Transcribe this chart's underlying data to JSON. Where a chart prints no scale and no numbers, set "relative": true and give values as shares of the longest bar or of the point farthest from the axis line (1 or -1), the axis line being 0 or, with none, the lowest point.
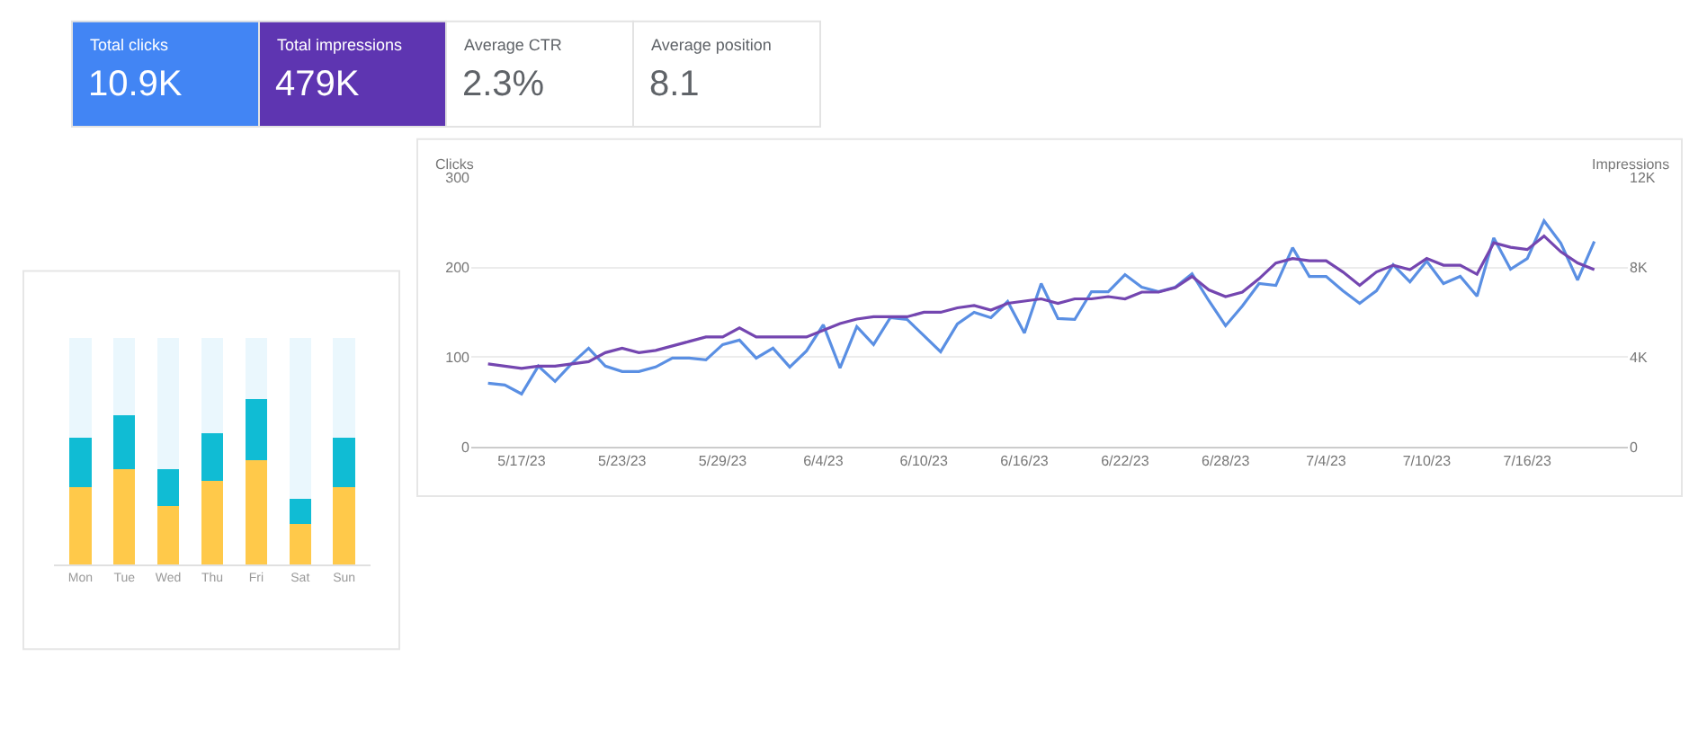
{
  "chart_data": [
    {
      "type": "other",
      "annotations": [
        "Total clicks",
        "10.9K",
        "Total impressions",
        "479K",
        "Average CTR",
        "2.3%",
        "Average position",
        "8.1"
      ]
    },
    {
      "type": "line",
      "ylabel": "Clicks",
      "y2label": "Impressions",
      "grid": "y",
      "legend": false,
      "marker": "none",
      "line_style": "solid",
      "x": [
        "--05-15",
        "--05-16",
        "--05-17",
        "--05-18",
        "--05-19",
        "--05-20",
        "--05-21",
        "--05-22",
        "--05-23",
        "--05-24",
        "--05-25",
        "--05-26",
        "--05-27",
        "--05-28",
        "--05-29",
        "--05-30",
        "--05-31",
        "--06-01",
        "--06-02",
        "--06-03",
        "--06-04",
        "--06-05",
        "--06-06",
        "--06-07",
        "--06-08",
        "--06-09",
        "--06-10",
        "--06-11",
        "--06-12",
        "--06-13",
        "--06-14",
        "--06-15",
        "--06-16",
        "--06-17",
        "--06-18",
        "--06-19",
        "--06-20",
        "--06-21",
        "--06-22",
        "--06-23",
        "--06-24",
        "--06-25",
        "--06-26",
        "--06-27",
        "--06-28",
        "--06-29",
        "--06-30",
        "--07-01",
        "--07-02",
        "--07-03",
        "--07-04",
        "--07-05",
        "--07-06",
        "--07-07",
        "--07-08",
        "--07-09",
        "--07-10",
        "--07-11",
        "--07-12",
        "--07-13",
        "--07-14",
        "--07-15",
        "--07-16",
        "--07-17",
        "--07-18",
        "--07-19",
        "--07-20"
      ],
      "series": [
        {
          "color": "#5a8fe3",
          "values": [
            71,
            69,
            59,
            90,
            73,
            93,
            110,
            90,
            84,
            84,
            89,
            99,
            99,
            97,
            114,
            119,
            99,
            110,
            89,
            107,
            136,
            88,
            134,
            114,
            144,
            142,
            124,
            106,
            137,
            150,
            144,
            162,
            127,
            182,
            143,
            142,
            173,
            173,
            192,
            178,
            173,
            178,
            193,
            163,
            135,
            157,
            182,
            180,
            222,
            190,
            190,
            174,
            160,
            174,
            203,
            184,
            207,
            182,
            190,
            168,
            233,
            198,
            210,
            252,
            227,
            186,
            229
          ]
        },
        {
          "color": "#7446b0",
          "axis": "y2",
          "values": [
            3700,
            3600,
            3500,
            3600,
            3600,
            3700,
            3800,
            4200,
            4400,
            4200,
            4300,
            4500,
            4700,
            4900,
            4900,
            5300,
            4900,
            4900,
            4900,
            4900,
            5200,
            5500,
            5700,
            5800,
            5800,
            5800,
            6000,
            6000,
            6200,
            6300,
            6100,
            6400,
            6500,
            6600,
            6400,
            6600,
            6600,
            6700,
            6600,
            6900,
            6900,
            7100,
            7600,
            7000,
            6700,
            6900,
            7500,
            8200,
            8400,
            8300,
            8300,
            7800,
            7200,
            7800,
            8100,
            7900,
            8400,
            8100,
            8100,
            7700,
            9100,
            8900,
            8800,
            9400,
            8700,
            8200,
            7900
          ]
        }
      ],
      "xlim": [
        "--05-14",
        "--07-22"
      ],
      "xticks": [
        {
          "value": "--05-17",
          "label": "5/17/23"
        },
        {
          "value": "--05-23",
          "label": "5/23/23"
        },
        {
          "value": "--05-29",
          "label": "5/29/23"
        },
        {
          "value": "--06-04",
          "label": "6/4/23"
        },
        {
          "value": "--06-10",
          "label": "6/10/23"
        },
        {
          "value": "--06-16",
          "label": "6/16/23"
        },
        {
          "value": "--06-22",
          "label": "6/22/23"
        },
        {
          "value": "--06-28",
          "label": "6/28/23"
        },
        {
          "value": "--07-04",
          "label": "7/4/23"
        },
        {
          "value": "--07-10",
          "label": "7/10/23"
        },
        {
          "value": "--07-16",
          "label": "7/16/23"
        }
      ],
      "ylim": [
        0,
        300
      ],
      "yticks": [
        0,
        100,
        200,
        300
      ],
      "y2lim": [
        0,
        12000
      ],
      "y2ticks": [
        0,
        {
          "value": 4000,
          "label": "4K"
        },
        {
          "value": 8000,
          "label": "8K"
        },
        {
          "value": 12000,
          "label": "12K"
        }
      ]
    },
    {
      "type": "bar",
      "stacked": true,
      "relative": true,
      "categories": [
        "Mon",
        "Tue",
        "Wed",
        "Thu",
        "Fri",
        "Sat",
        "Sun"
      ],
      "series": [
        {
          "color": "#ffc94a",
          "values": [
            0.34,
            0.42,
            0.26,
            0.37,
            0.46,
            0.18,
            0.34
          ]
        },
        {
          "color": "#10bcd4",
          "values": [
            0.22,
            0.24,
            0.16,
            0.21,
            0.27,
            0.11,
            0.22
          ]
        },
        {
          "color": "#eaf7fd",
          "values": [
            0.44,
            0.34,
            0.58,
            0.42,
            0.27,
            0.71,
            0.44
          ]
        }
      ]
    }
  ]
}
